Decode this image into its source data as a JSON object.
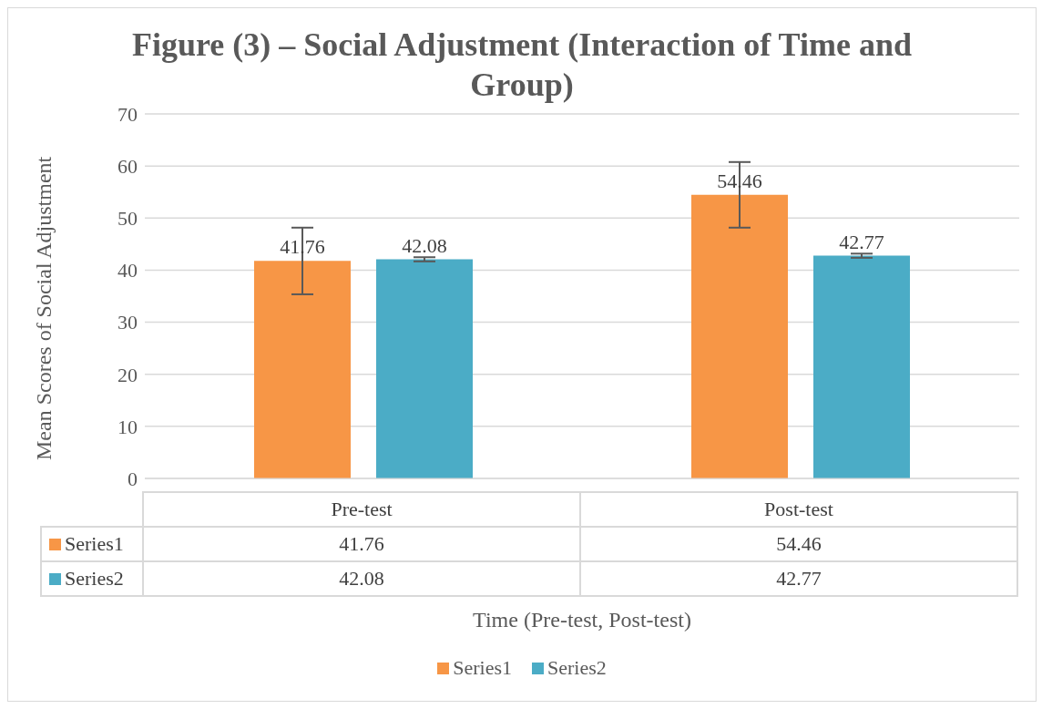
{
  "chart_data": {
    "type": "bar",
    "title": "Figure (3) – Social Adjustment (Interaction of Time and Group)",
    "xlabel": "Time (Pre-test, Post-test)",
    "ylabel": "Mean Scores of Social Adjustment",
    "categories": [
      "Pre-test",
      "Post-test"
    ],
    "series": [
      {
        "name": "Series1",
        "color": "#f79646",
        "values": [
          41.76,
          54.46
        ],
        "errors": [
          6.4,
          6.3
        ]
      },
      {
        "name": "Series2",
        "color": "#4bacc6",
        "values": [
          42.08,
          42.77
        ],
        "errors": [
          0.4,
          0.4
        ]
      }
    ],
    "annotations": [
      "41.76",
      "42.08",
      "54.46",
      "42.77"
    ],
    "ylim": [
      0,
      70
    ],
    "yticks": [
      0,
      10,
      20,
      30,
      40,
      50,
      60,
      70
    ],
    "grid": "y",
    "legend": "bottom",
    "data_labels": true
  }
}
